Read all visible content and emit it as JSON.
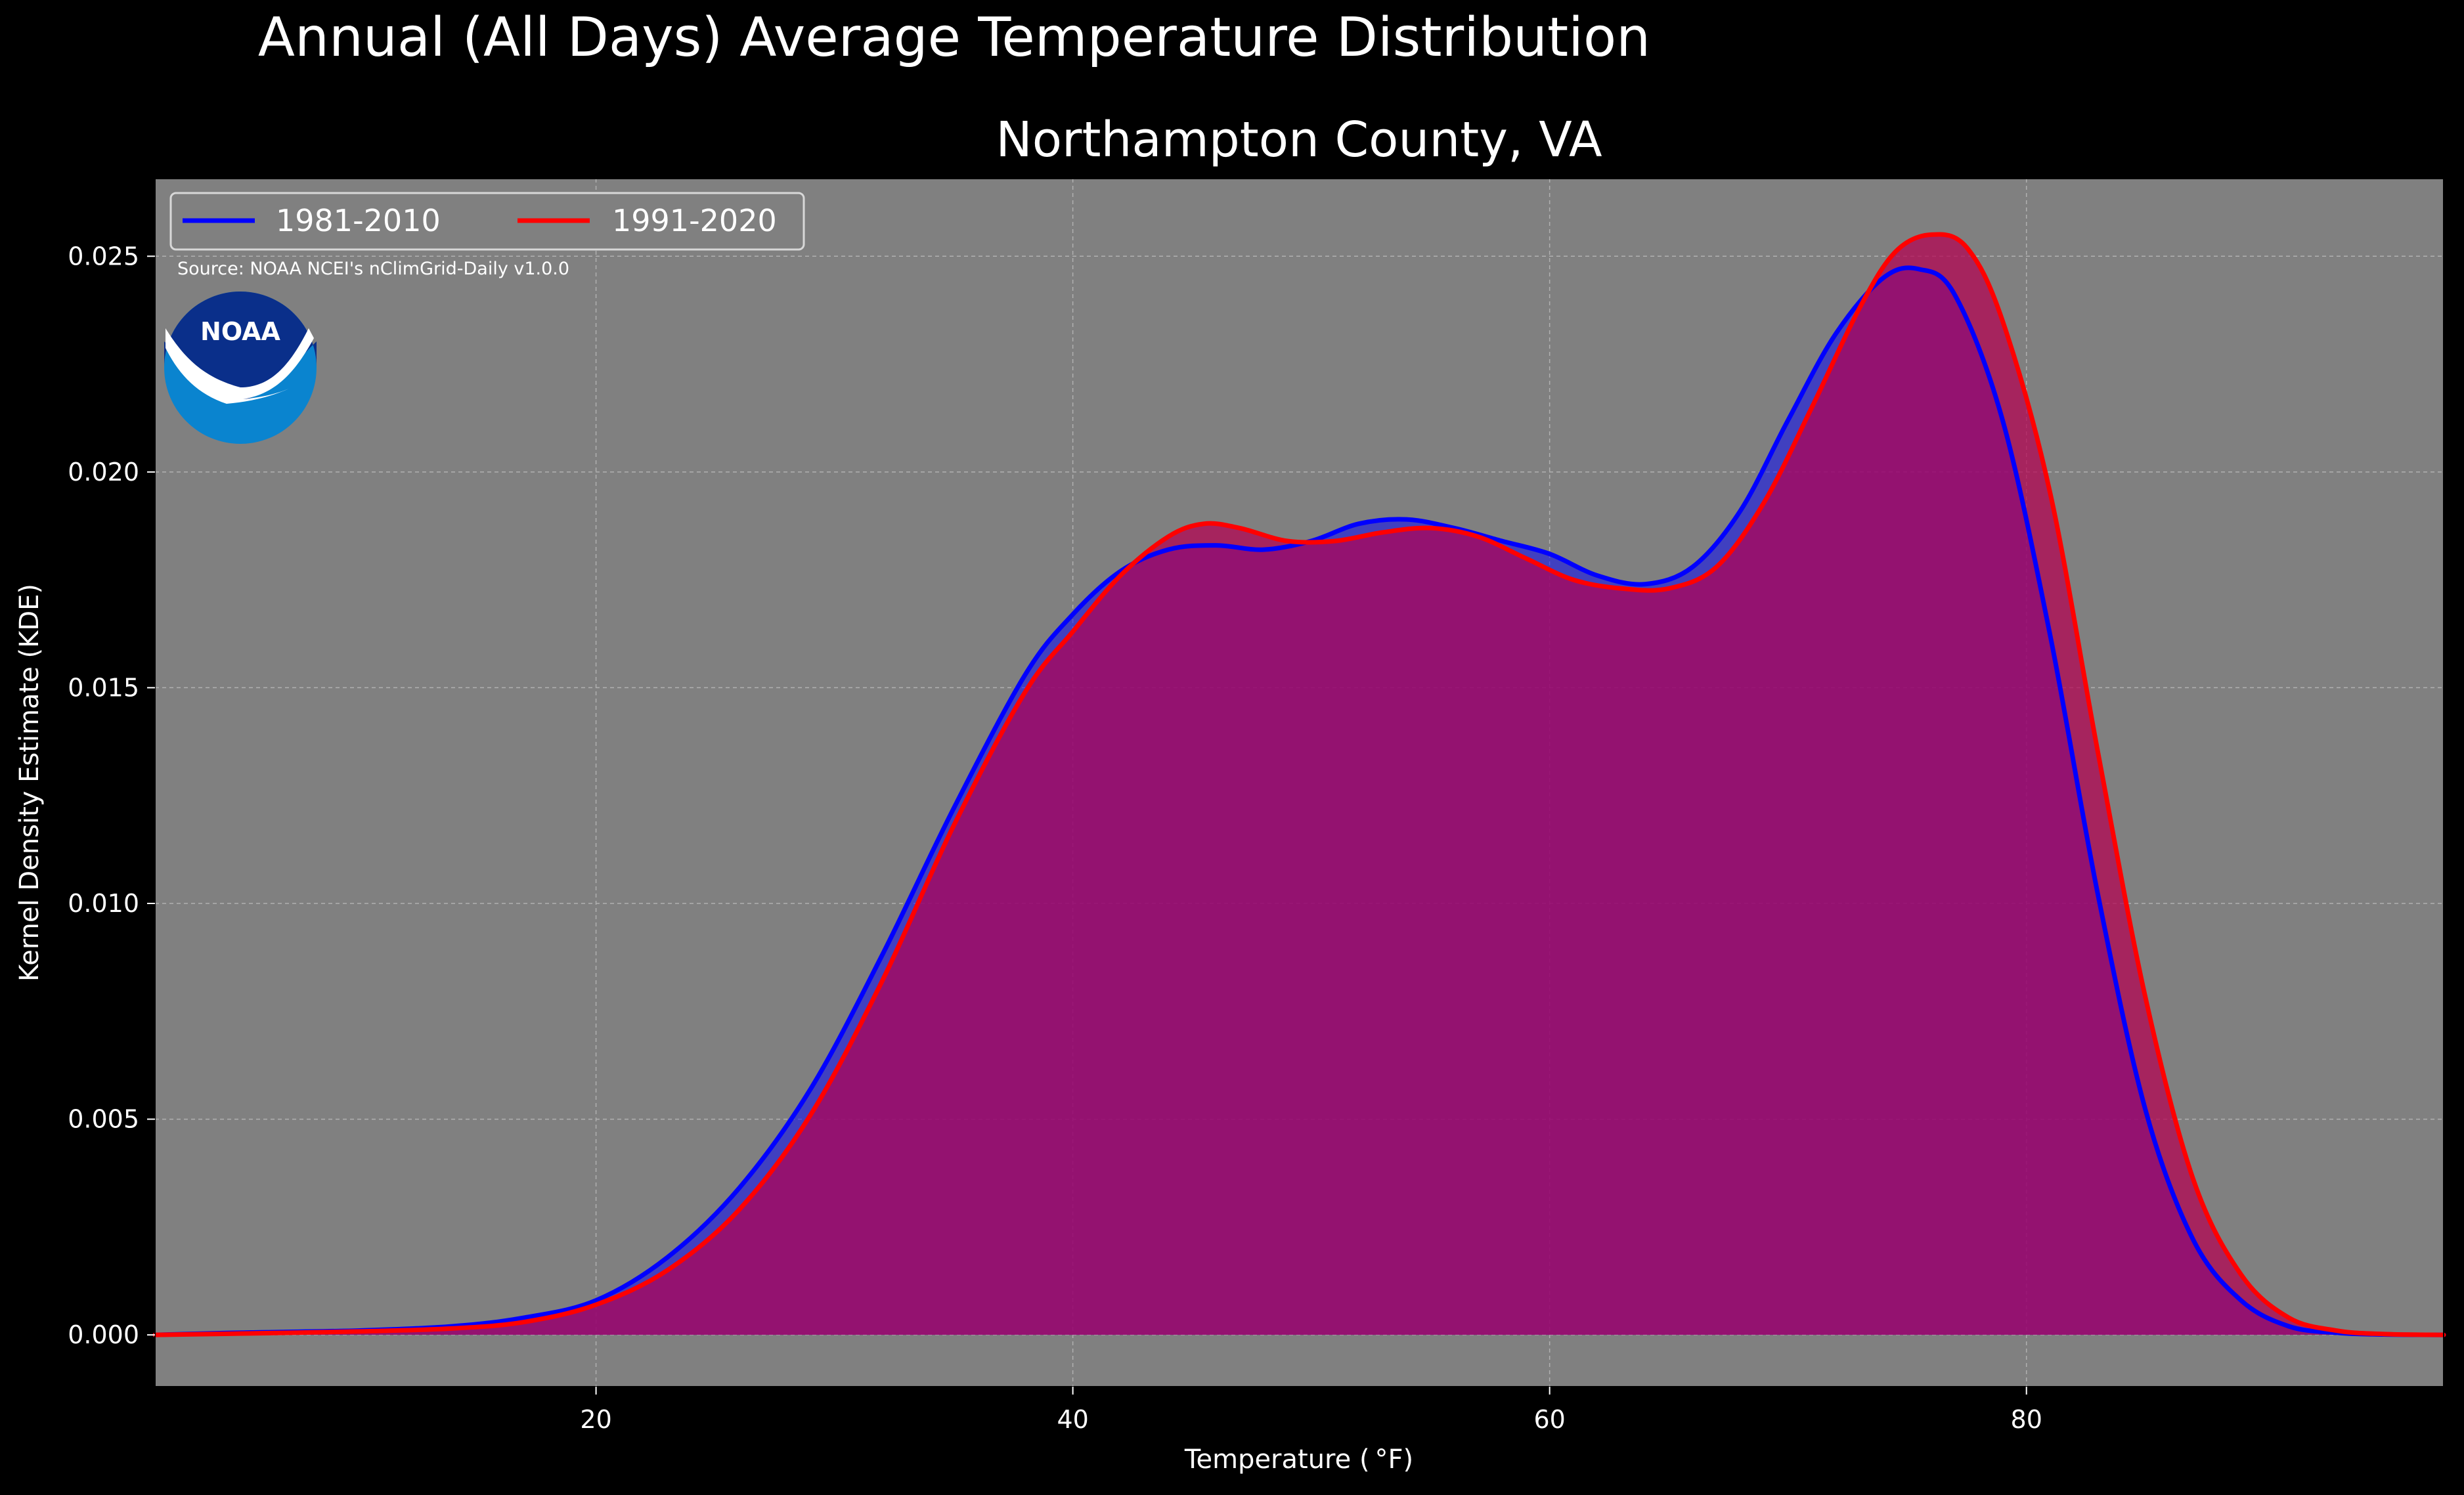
{
  "chart_data": {
    "type": "area",
    "suptitle": "Annual (All Days) Average Temperature Distribution",
    "title": "Northampton County, VA",
    "xlabel": "Temperature ( °F)",
    "ylabel": "Kernel Density Estimate (KDE)",
    "source": "Source: NOAA NCEI's nClimGrid-Daily v1.0.0",
    "logo_text": "NOAA",
    "xlim": [
      1.5,
      97.5
    ],
    "ylim": [
      -0.0012,
      0.0268
    ],
    "xticks": [
      20,
      40,
      60,
      80
    ],
    "xtick_labels": [
      "20",
      "40",
      "60",
      "80"
    ],
    "yticks": [
      0.0,
      0.005,
      0.01,
      0.015,
      0.02,
      0.025
    ],
    "ytick_labels": [
      "0.000",
      "0.005",
      "0.010",
      "0.015",
      "0.020",
      "0.025"
    ],
    "grid": true,
    "legend_position": "top-left",
    "colors": {
      "figure_bg": "#000000",
      "axes_bg": "#808080",
      "grid": "#b0b0b0",
      "text": "#ffffff",
      "noaa_dark": "#0a2f8a",
      "noaa_light": "#0a84cf"
    },
    "series": [
      {
        "name": "1981-2010",
        "color": "#0000ff",
        "fill": "rgba(0,0,255,0.5)",
        "x": [
          1.5,
          5,
          10,
          14,
          17,
          20,
          23,
          26,
          29,
          32,
          35,
          38,
          40,
          42,
          44,
          46,
          48,
          50,
          52,
          54,
          56,
          58,
          60,
          62,
          64,
          66,
          68,
          70,
          72,
          74,
          75.5,
          77,
          79,
          81,
          83,
          85,
          87,
          89,
          91,
          93,
          95,
          97.5
        ],
        "y": [
          0.0,
          5e-05,
          0.0001,
          0.0002,
          0.0004,
          0.0008,
          0.0018,
          0.0034,
          0.0057,
          0.0088,
          0.0122,
          0.0153,
          0.0167,
          0.0177,
          0.0182,
          0.0183,
          0.0182,
          0.0184,
          0.0188,
          0.0189,
          0.0187,
          0.0184,
          0.0181,
          0.0176,
          0.0174,
          0.0178,
          0.0191,
          0.0212,
          0.0232,
          0.0245,
          0.0247,
          0.0241,
          0.0212,
          0.0162,
          0.0102,
          0.0052,
          0.0022,
          0.0008,
          0.0002,
          5e-05,
          1e-05,
          0.0
        ]
      },
      {
        "name": "1991-2020",
        "color": "#ff0000",
        "fill": "rgba(180,0,80,0.72)",
        "x": [
          1.5,
          5,
          10,
          14,
          17,
          20,
          23,
          26,
          29,
          32,
          35,
          38,
          40,
          42,
          44,
          45.5,
          47,
          49,
          51,
          53,
          55,
          57,
          59,
          61,
          63,
          65,
          67,
          69,
          71,
          73,
          74.5,
          76,
          77.5,
          79,
          81,
          83,
          85,
          87,
          89,
          91,
          93,
          95,
          97.5
        ],
        "y": [
          0.0,
          3e-05,
          8e-05,
          0.00015,
          0.0003,
          0.0007,
          0.0015,
          0.0029,
          0.0051,
          0.0082,
          0.0118,
          0.0149,
          0.0163,
          0.0176,
          0.0185,
          0.0188,
          0.0187,
          0.0184,
          0.0184,
          0.0186,
          0.0187,
          0.0185,
          0.018,
          0.0175,
          0.0173,
          0.0173,
          0.0178,
          0.0193,
          0.0215,
          0.0238,
          0.0251,
          0.0255,
          0.0252,
          0.0235,
          0.0195,
          0.0135,
          0.0078,
          0.0036,
          0.0014,
          0.0004,
          0.0001,
          2e-05,
          0.0
        ]
      }
    ]
  }
}
